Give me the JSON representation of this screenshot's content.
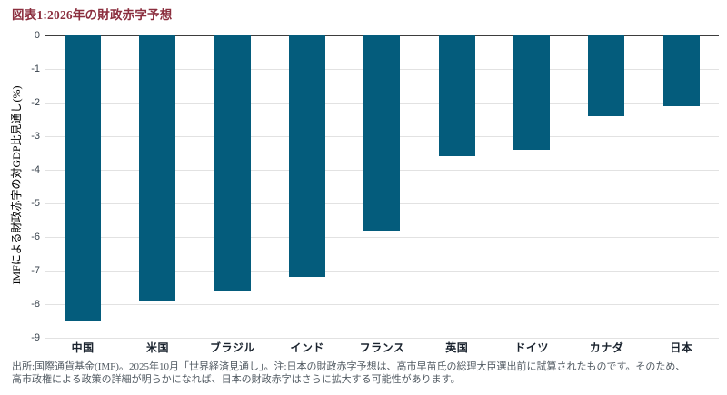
{
  "title": "図表1:2026年の財政赤字予想",
  "chart_data": {
    "type": "bar",
    "title": "図表1:2026年の財政赤字予想",
    "categories": [
      "中国",
      "米国",
      "ブラジル",
      "インド",
      "フランス",
      "英国",
      "ドイツ",
      "カナダ",
      "日本"
    ],
    "values": [
      -8.5,
      -7.9,
      -7.6,
      -7.2,
      -5.8,
      -3.6,
      -3.4,
      -2.4,
      -2.1
    ],
    "xlabel": "",
    "ylabel": "IMFによる財政赤字の対GDP比見通し(%)",
    "ylim": [
      -9,
      0
    ],
    "y_ticks": [
      0,
      -1,
      -2,
      -3,
      -4,
      -5,
      -6,
      -7,
      -8,
      -9
    ],
    "grid": "horizontal",
    "legend": "none"
  },
  "footer": {
    "lines": [
      "出所:国際通貨基金(IMF)。2025年10月「世界経済見通し」。注:日本の財政赤字予想は、高市早苗氏の総理大臣選出前に試算されたものです。そのため、",
      "高市政権による政策の詳細が明らかになれば、日本の財政赤字はさらに拡大する可能性があります。"
    ]
  },
  "colors": {
    "bar": "#045C7C",
    "title": "#8B2E3E",
    "grid": "#E2E2E2",
    "zero_line": "#3D3D3D",
    "axis_tick_text": "#38424C",
    "category_text": "#1A232E",
    "footer_text": "#515A62"
  }
}
